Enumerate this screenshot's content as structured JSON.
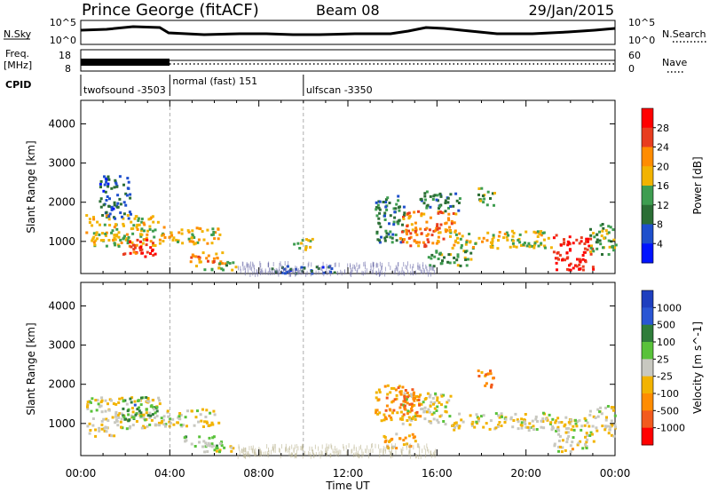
{
  "header": {
    "station": "Prince George (fitACF)",
    "beam": "Beam 08",
    "date": "29/Jan/2015"
  },
  "strips": {
    "nsky_label": "N.Sky",
    "nsky_ticks": [
      "10^5",
      "10^0"
    ],
    "nsearch_label": "N.Search",
    "nsearch_ticks": [
      "10^5",
      "10^0"
    ],
    "freq_label_top": "Freq.",
    "freq_label_bottom": "[MHz]",
    "freq_ticks": [
      "18",
      "8"
    ],
    "nave_label": "Nave",
    "nave_ticks": [
      "60",
      "0"
    ],
    "cpid_label": "CPID",
    "modes": [
      {
        "label": "twofsound -3503",
        "start_hour": 0
      },
      {
        "label": "normal (fast) 151",
        "start_hour": 4
      },
      {
        "label": "ulfscan -3350",
        "start_hour": 10
      }
    ]
  },
  "chart_data": [
    {
      "type": "heatmap",
      "panel": "power",
      "ylabel": "Slant Range [km]",
      "xlabel": "Time UT",
      "x_ticks": [
        "00:00",
        "04:00",
        "08:00",
        "12:00",
        "16:00",
        "20:00",
        "00:00"
      ],
      "x_range_hours": [
        0,
        24
      ],
      "y_ticks": [
        1000,
        2000,
        3000,
        4000
      ],
      "ylim": [
        180,
        4600
      ],
      "colorbar": {
        "label": "Power [dB]",
        "ticks": [
          "28",
          "24",
          "20",
          "16",
          "12",
          "8",
          "4"
        ],
        "colors": [
          "#ff0000",
          "#e83d1f",
          "#ff8c00",
          "#f2b300",
          "#3e9d50",
          "#2b6e35",
          "#1e4fcc",
          "#0014ff"
        ]
      },
      "regions": [
        {
          "t": [
            0.2,
            3.5
          ],
          "r": [
            900,
            1700
          ],
          "level": 0.55
        },
        {
          "t": [
            0.8,
            2.2
          ],
          "r": [
            1600,
            2700
          ],
          "level": 0.2
        },
        {
          "t": [
            1.8,
            3.2
          ],
          "r": [
            700,
            1100
          ],
          "level": 0.85
        },
        {
          "t": [
            2.6,
            3.3
          ],
          "r": [
            600,
            900
          ],
          "level": 0.95
        },
        {
          "t": [
            3.5,
            6.2
          ],
          "r": [
            950,
            1400
          ],
          "level": 0.6
        },
        {
          "t": [
            4.8,
            6.5
          ],
          "r": [
            400,
            750
          ],
          "level": 0.7
        },
        {
          "t": [
            5.5,
            7.0
          ],
          "r": [
            300,
            500
          ],
          "level": 0.45
        },
        {
          "t": [
            9.5,
            10.5
          ],
          "r": [
            800,
            1100
          ],
          "level": 0.5
        },
        {
          "t": [
            8.5,
            11.8
          ],
          "r": [
            200,
            400
          ],
          "level": 0.2
        },
        {
          "t": [
            13.2,
            14.5
          ],
          "r": [
            1000,
            2200
          ],
          "level": 0.3
        },
        {
          "t": [
            14.3,
            16.8
          ],
          "r": [
            900,
            1800
          ],
          "level": 0.75
        },
        {
          "t": [
            15.2,
            17.0
          ],
          "r": [
            1800,
            2300
          ],
          "level": 0.3
        },
        {
          "t": [
            17.8,
            18.6
          ],
          "r": [
            1950,
            2400
          ],
          "level": 0.4
        },
        {
          "t": [
            16.5,
            21.2
          ],
          "r": [
            850,
            1300
          ],
          "level": 0.55
        },
        {
          "t": [
            21.2,
            23.0
          ],
          "r": [
            300,
            1200
          ],
          "level": 0.95
        },
        {
          "t": [
            22.8,
            24.0
          ],
          "r": [
            700,
            1500
          ],
          "level": 0.45
        },
        {
          "t": [
            15.5,
            17.5
          ],
          "r": [
            400,
            800
          ],
          "level": 0.4
        }
      ]
    },
    {
      "type": "heatmap",
      "panel": "velocity",
      "ylabel": "Slant Range [km]",
      "xlabel": "Time UT",
      "x_ticks": [
        "00:00",
        "04:00",
        "08:00",
        "12:00",
        "16:00",
        "20:00",
        "00:00"
      ],
      "x_range_hours": [
        0,
        24
      ],
      "y_ticks": [
        1000,
        2000,
        3000,
        4000
      ],
      "ylim": [
        180,
        4600
      ],
      "colorbar": {
        "label": "Velocity [m s^-1]",
        "ticks": [
          "1000",
          "500",
          "100",
          "25",
          "-25",
          "-100",
          "-500",
          "-1000"
        ],
        "colors": [
          "#1e3fbf",
          "#2a56d4",
          "#2f7d3a",
          "#59c23a",
          "#c8c8c0",
          "#f2b300",
          "#ff8c00",
          "#f25a1e",
          "#ff0000"
        ]
      },
      "regions": [
        {
          "t": [
            0.2,
            3.5
          ],
          "r": [
            900,
            1700
          ],
          "level": 0.45
        },
        {
          "t": [
            1.8,
            3.4
          ],
          "r": [
            1100,
            1700
          ],
          "level": 0.68
        },
        {
          "t": [
            3.5,
            6.2
          ],
          "r": [
            950,
            1400
          ],
          "level": 0.45
        },
        {
          "t": [
            4.5,
            6.5
          ],
          "r": [
            400,
            700
          ],
          "level": 0.58
        },
        {
          "t": [
            5.5,
            7.0
          ],
          "r": [
            300,
            500
          ],
          "level": 0.48
        },
        {
          "t": [
            0.3,
            1.5
          ],
          "r": [
            700,
            1000
          ],
          "level": 0.45
        },
        {
          "t": [
            13.2,
            14.6
          ],
          "r": [
            1100,
            2000
          ],
          "level": 0.28
        },
        {
          "t": [
            14.3,
            16.6
          ],
          "r": [
            1000,
            1800
          ],
          "level": 0.45
        },
        {
          "t": [
            14.3,
            15.2
          ],
          "r": [
            1200,
            1900
          ],
          "level": 0.2
        },
        {
          "t": [
            17.8,
            18.6
          ],
          "r": [
            1950,
            2400
          ],
          "level": 0.22
        },
        {
          "t": [
            16.5,
            21.2
          ],
          "r": [
            850,
            1300
          ],
          "level": 0.45
        },
        {
          "t": [
            21.2,
            23.0
          ],
          "r": [
            300,
            1200
          ],
          "level": 0.45
        },
        {
          "t": [
            22.8,
            24.0
          ],
          "r": [
            700,
            1500
          ],
          "level": 0.45
        },
        {
          "t": [
            13.5,
            15.0
          ],
          "r": [
            400,
            800
          ],
          "level": 0.32
        }
      ]
    }
  ]
}
